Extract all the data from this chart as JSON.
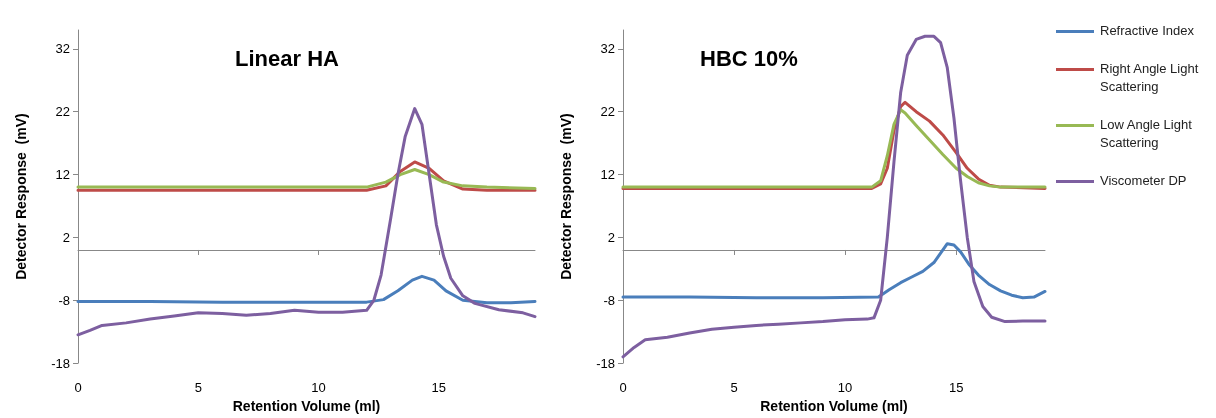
{
  "chart_data": [
    {
      "type": "line",
      "title": "Linear HA",
      "xlabel": "Retention Volume (ml)",
      "ylabel": "Detector Response  (mV)",
      "xlim": [
        0,
        19
      ],
      "xticks": [
        0,
        5,
        10,
        15
      ],
      "ylim": [
        -18,
        35
      ],
      "yticks": [
        -18,
        -8,
        2,
        12,
        22,
        32
      ],
      "grid": false,
      "legend": false,
      "marker": "none",
      "line_style": "solid",
      "series": [
        {
          "color": "#4a7ebb",
          "x": [
            0,
            3,
            6,
            9,
            12,
            12.7,
            13.3,
            13.9,
            14.3,
            14.8,
            15.3,
            16,
            17,
            18,
            19
          ],
          "values": [
            -8.2,
            -8.2,
            -8.3,
            -8.3,
            -8.3,
            -7.9,
            -6.5,
            -4.8,
            -4.2,
            -4.8,
            -6.5,
            -8,
            -8.4,
            -8.4,
            -8.2
          ]
        },
        {
          "color": "#be4b48",
          "x": [
            0,
            4,
            8,
            12,
            12.8,
            13.4,
            14,
            14.6,
            15.2,
            16,
            17,
            19
          ],
          "values": [
            9.5,
            9.5,
            9.5,
            9.5,
            10.2,
            12.5,
            14,
            13,
            11,
            9.7,
            9.5,
            9.5
          ]
        },
        {
          "color": "#98b954",
          "x": [
            0,
            4,
            8,
            12,
            12.8,
            13.4,
            14,
            14.6,
            15.2,
            16,
            17,
            19
          ],
          "values": [
            10,
            10,
            10,
            10,
            10.8,
            12,
            12.8,
            12,
            10.8,
            10.2,
            10,
            9.8
          ]
        },
        {
          "color": "#7d5fa0",
          "x": [
            0,
            0.5,
            1,
            2,
            3,
            4,
            5,
            6,
            7,
            8,
            9,
            10,
            11,
            12,
            12.3,
            12.6,
            13,
            13.3,
            13.6,
            14,
            14.3,
            14.6,
            14.9,
            15.2,
            15.5,
            16,
            16.5,
            17.5,
            18.5,
            19
          ],
          "values": [
            -13.5,
            -12.8,
            -12,
            -11.6,
            -11,
            -10.5,
            -10,
            -10.1,
            -10.4,
            -10.1,
            -9.6,
            -9.9,
            -9.9,
            -9.6,
            -8,
            -4,
            5,
            12,
            18,
            22.5,
            20,
            12,
            4,
            -1,
            -4.5,
            -7.3,
            -8.5,
            -9.5,
            -10,
            -10.6
          ]
        }
      ]
    },
    {
      "type": "line",
      "title": "HBC 10%",
      "xlabel": "Retention Volume (ml)",
      "ylabel": "Detector Response  (mV)",
      "xlim": [
        0,
        19
      ],
      "xticks": [
        0,
        5,
        10,
        15
      ],
      "ylim": [
        -18,
        35
      ],
      "yticks": [
        -18,
        -8,
        2,
        12,
        22,
        32
      ],
      "grid": false,
      "legend": "right",
      "marker": "none",
      "line_style": "solid",
      "series": [
        {
          "name": "Refractive Index",
          "color": "#4a7ebb",
          "x": [
            0,
            3,
            6,
            9,
            11.5,
            12,
            12.5,
            13,
            13.5,
            14,
            14.3,
            14.6,
            14.9,
            15.2,
            15.6,
            16,
            16.5,
            17,
            17.5,
            18,
            18.5,
            19
          ],
          "values": [
            -7.5,
            -7.5,
            -7.6,
            -7.6,
            -7.5,
            -6.3,
            -5.2,
            -4.3,
            -3.4,
            -2,
            -0.5,
            1,
            0.8,
            -0.3,
            -2.4,
            -4,
            -5.5,
            -6.5,
            -7.2,
            -7.6,
            -7.5,
            -6.6
          ]
        },
        {
          "name": "Right Angle Light Scattering",
          "color": "#be4b48",
          "x": [
            0,
            4,
            8,
            11.2,
            11.6,
            11.9,
            12.2,
            12.5,
            12.7,
            13.2,
            13.8,
            14.4,
            15,
            15.5,
            16,
            16.5,
            17,
            19
          ],
          "values": [
            9.8,
            9.8,
            9.8,
            9.8,
            10.5,
            13,
            19,
            22.8,
            23.5,
            22,
            20.5,
            18.3,
            15.5,
            13,
            11.3,
            10.3,
            10,
            9.8
          ]
        },
        {
          "name": "Low Angle Light Scattering",
          "color": "#98b954",
          "x": [
            0,
            4,
            8,
            11.2,
            11.6,
            11.9,
            12.2,
            12.5,
            12.7,
            13.2,
            13.8,
            14.4,
            15,
            15.5,
            16,
            16.5,
            17,
            19
          ],
          "values": [
            10,
            10,
            10,
            10,
            11,
            15,
            20,
            22.3,
            21.8,
            19.8,
            17.5,
            15.2,
            13,
            11.7,
            10.7,
            10.2,
            10,
            10
          ]
        },
        {
          "name": "Viscometer DP",
          "color": "#7d5fa0",
          "x": [
            0,
            0.5,
            1,
            2,
            3,
            4,
            5,
            6,
            7,
            8,
            9,
            10,
            11,
            11.3,
            11.6,
            11.9,
            12.2,
            12.5,
            12.8,
            13.2,
            13.6,
            14,
            14.3,
            14.6,
            14.9,
            15.2,
            15.5,
            15.8,
            16.2,
            16.6,
            17.2,
            18,
            19
          ],
          "values": [
            -17,
            -15.5,
            -14.3,
            -13.9,
            -13.2,
            -12.6,
            -12.3,
            -12,
            -11.8,
            -11.6,
            -11.4,
            -11.1,
            -11,
            -10.8,
            -8,
            2,
            14,
            25,
            31,
            33.5,
            34,
            34,
            33,
            29,
            21,
            11,
            2,
            -5,
            -9,
            -10.7,
            -11.4,
            -11.3,
            -11.3
          ]
        }
      ]
    }
  ]
}
